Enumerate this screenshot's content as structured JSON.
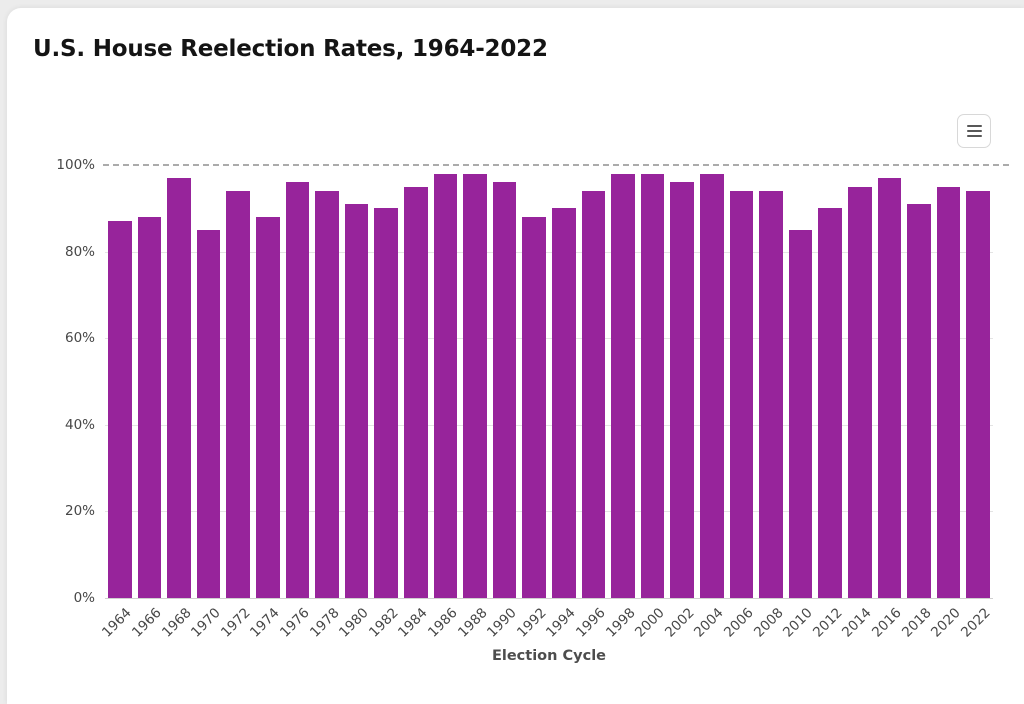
{
  "chart_data": {
    "type": "bar",
    "title": "U.S. House Reelection Rates, 1964-2022",
    "xlabel": "Election Cycle",
    "ylabel": "",
    "categories": [
      "1964",
      "1966",
      "1968",
      "1970",
      "1972",
      "1974",
      "1976",
      "1978",
      "1980",
      "1982",
      "1984",
      "1986",
      "1988",
      "1990",
      "1992",
      "1994",
      "1996",
      "1998",
      "2000",
      "2002",
      "2004",
      "2006",
      "2008",
      "2010",
      "2012",
      "2014",
      "2016",
      "2018",
      "2020",
      "2022"
    ],
    "values": [
      87,
      88,
      97,
      85,
      94,
      88,
      96,
      94,
      91,
      90,
      95,
      98,
      98,
      96,
      88,
      90,
      94,
      98,
      98,
      96,
      98,
      94,
      94,
      85,
      90,
      95,
      97,
      91,
      95,
      94
    ],
    "ylim": [
      0,
      100
    ],
    "yticks": [
      0,
      20,
      40,
      60,
      80,
      100
    ],
    "ytick_labels": [
      "0%",
      "20%",
      "40%",
      "60%",
      "80%",
      "100%"
    ],
    "bar_color": "#97249B",
    "plotline": {
      "value": 100,
      "style": "dashed",
      "color": "#ababab"
    },
    "grid": true,
    "legend": false,
    "icons": {
      "context_menu": "hamburger-icon"
    }
  }
}
